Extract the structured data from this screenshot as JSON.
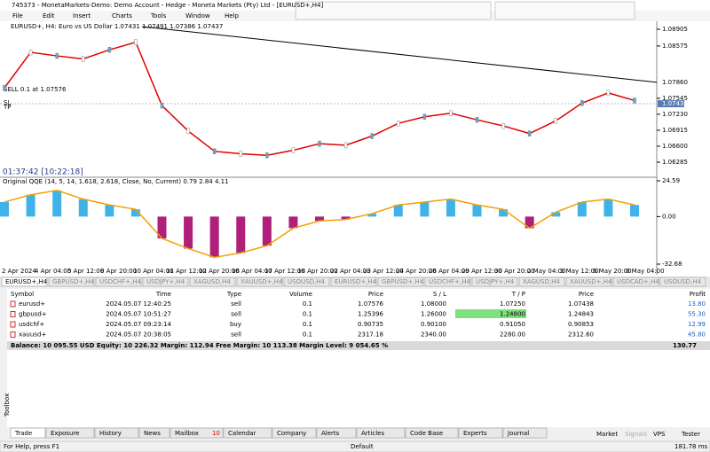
{
  "window_title": "745373 - MonetaMarkets-Demo: Demo Account - Hedge - Moneta Markets (Pty) Ltd - [EURUSD+,H4]",
  "menu": [
    "File",
    "Edit",
    "Insert",
    "Charts",
    "Tools",
    "Window",
    "Help"
  ],
  "chart": {
    "symbol_label": "EURUSD+, H4:  Euro vs US Dollar  1.07431 1.07491 1.07386 1.07437",
    "sl_label": "SL",
    "order_label": "SELL 0.1 at 1.07576",
    "tp_label": "TP",
    "countdown": "01:37:42 [10:22:18]",
    "price_ticks": [
      1.08905,
      1.08575,
      1.07545,
      {
        "value": 1.0723,
        "label": "1.07230"
      },
      1.06915,
      {
        "value": 1.066,
        "label": "1.06600"
      },
      1.06285
    ],
    "trendline_price": {
      "value": 1.0786,
      "label": "1.07860"
    },
    "current_price": 1.07437,
    "closes": [
      1.0775,
      1.0845,
      1.0838,
      1.0832,
      1.085,
      1.0865,
      1.074,
      1.069,
      1.065,
      1.0645,
      1.0642,
      1.0652,
      1.0665,
      1.0662,
      1.068,
      1.0705,
      1.0718,
      1.0725,
      1.0712,
      1.07,
      1.0685,
      1.071,
      1.0745,
      1.0765,
      1.075
    ],
    "indicator_label": "Original QQE (14, 5, 14, 1.618, 2.618, Close, No, Current) 0.79 2.84 4.11",
    "indicator_ticks": [
      24.59,
      {
        "value": 0,
        "label": "0.00"
      },
      -32.68
    ],
    "indicator_values": [
      10,
      15,
      18,
      12,
      8,
      5,
      -15,
      -22,
      -28,
      -25,
      -20,
      -8,
      -3,
      -2,
      2,
      8,
      10,
      12,
      8,
      5,
      -8,
      3,
      10,
      12,
      8
    ],
    "time_labels": [
      "2 Apr 2024",
      "4 Apr 04:00",
      "5 Apr 12:00",
      "8 Apr 20:00",
      "10 Apr 04:00",
      "11 Apr 12:00",
      "12 Apr 20:00",
      "16 Apr 04:00",
      "17 Apr 12:00",
      "18 Apr 20:00",
      "22 Apr 04:00",
      "23 Apr 12:00",
      "24 Apr 20:00",
      "26 Apr 04:00",
      "29 Apr 12:00",
      "30 Apr 20:00",
      "2 May 04:00",
      "3 May 12:00",
      "6 May 20:00",
      "8 May 04:00"
    ]
  },
  "chart_tabs": [
    "EURUSD+,H4",
    "GBPUSD+,H4",
    "USDCHF+,H4",
    "USDJPY+,H4",
    "XAGUSD,H4",
    "XAUUSD+,H4",
    "USOUSD,H4",
    "EURUSD+,H4",
    "GBPUSD+,H4",
    "USDCHF+,H4",
    "USDJPY+,H4",
    "XAGUSD,H4",
    "XAUUSD+,H4",
    "USDCAD+,H4",
    "USOUSD,H4"
  ],
  "table": {
    "header": [
      "Symbol",
      "Time",
      "Type",
      "Volume",
      "Price",
      "S / L",
      "T / P",
      "Price",
      "Profit"
    ],
    "rows": [
      [
        "eurusd+",
        "2024.05.07 12:40:25",
        "sell",
        "0.1",
        "1.07576",
        "1.08000",
        "1.07250",
        "1.07438",
        "13.80"
      ],
      [
        "gbpusd+",
        "2024.05.07 10:51:27",
        "sell",
        "0.1",
        "1.25396",
        "1.26000",
        "1.24800",
        "1.24843",
        "55.30"
      ],
      [
        "usdchf+",
        "2024.05.07 09:23:14",
        "buy",
        "0.1",
        "0.90735",
        "0.90100",
        "0.91050",
        "0.90853",
        "12.99"
      ],
      [
        "xauusd+",
        "2024.05.07 20:38:05",
        "sell",
        "0.1",
        "2317.18",
        "2340.00",
        "2280.00",
        "2312.60",
        "45.80"
      ]
    ],
    "balance": "Balance: 10 095.55 USD  Equity: 10 226.32  Margin: 112.94  Free Margin: 10 113.38  Margin Level: 9 054.65 %",
    "total": "130.77"
  },
  "toolbox_label": "Toolbox",
  "bottom_tabs": [
    "Trade",
    "Exposure",
    "History",
    "News",
    "Mailbox",
    "Calendar",
    "Company",
    "Alerts",
    "Articles",
    "Code Base",
    "Experts",
    "Journal"
  ],
  "mailbox_count": "10",
  "right_tabs": [
    "Market",
    "Signals",
    "VPS",
    "Tester"
  ],
  "status": {
    "help": "For Help, press F1",
    "profile": "Default",
    "ping": "181.78 ms"
  }
}
